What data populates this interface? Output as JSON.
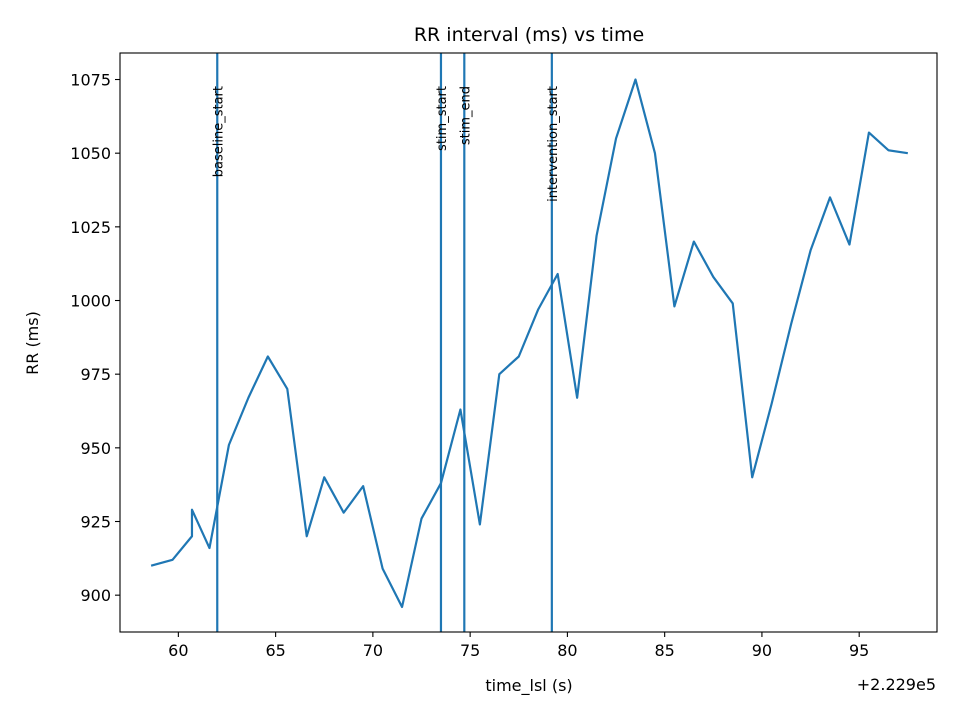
{
  "chart_data": {
    "type": "line",
    "title": "RR interval (ms) vs time",
    "xlabel": "time_lsl (s)",
    "ylabel": "RR (ms)",
    "x_offset_label": "+2.229e5",
    "xlim": [
      57,
      99
    ],
    "ylim": [
      887.5,
      1084
    ],
    "xticks": [
      60,
      65,
      70,
      75,
      80,
      85,
      90,
      95
    ],
    "yticks": [
      900,
      925,
      950,
      975,
      1000,
      1025,
      1050,
      1075
    ],
    "grid": false,
    "line_color": "#1f77b4",
    "series": [
      {
        "x": [
          58.6,
          59.7,
          60.7,
          60.7,
          61.6,
          62.6,
          63.6,
          64.6,
          65.6,
          66.6,
          67.5,
          68.5,
          69.5,
          70.5,
          71.5,
          72.5,
          73.5,
          74.5,
          75.5,
          76.5,
          77.5,
          78.5,
          79.5,
          80.5,
          81.5,
          82.5,
          83.5,
          84.5,
          85.5,
          86.5,
          87.5,
          88.5,
          89.5,
          90.5,
          91.5,
          92.5,
          93.5,
          94.5,
          95.5,
          96.5,
          97.5
        ],
        "y": [
          910,
          912,
          920,
          929,
          916,
          951,
          967,
          981,
          970,
          920,
          940,
          928,
          937,
          909,
          896,
          926,
          938,
          963,
          924,
          975,
          981,
          997,
          1009,
          967,
          1022,
          1055,
          1075,
          1050,
          998,
          1020,
          1008,
          999,
          940,
          965,
          992,
          1017,
          1035,
          1019,
          1057,
          1051,
          1050
        ]
      }
    ],
    "events": [
      {
        "x": 62.0,
        "label": "baseline_start"
      },
      {
        "x": 73.5,
        "label": "stim_start"
      },
      {
        "x": 74.7,
        "label": "stim_end"
      },
      {
        "x": 79.2,
        "label": "intervention_start"
      }
    ]
  }
}
